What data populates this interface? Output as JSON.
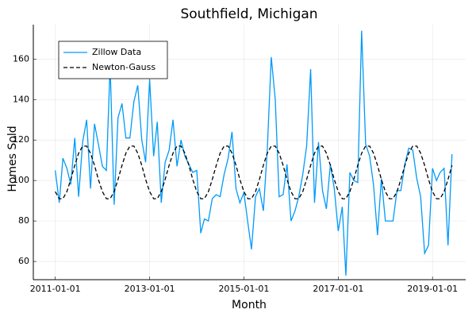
{
  "chart_data": {
    "type": "line",
    "title": "Southfield, Michigan",
    "x_label": "Month",
    "y_label": "Homes Sold",
    "x": [
      "2011-01-01",
      "2011-02-01",
      "2011-03-01",
      "2011-04-01",
      "2011-05-01",
      "2011-06-01",
      "2011-07-01",
      "2011-08-01",
      "2011-09-01",
      "2011-10-01",
      "2011-11-01",
      "2011-12-01",
      "2012-01-01",
      "2012-02-01",
      "2012-03-01",
      "2012-04-01",
      "2012-05-01",
      "2012-06-01",
      "2012-07-01",
      "2012-08-01",
      "2012-09-01",
      "2012-10-01",
      "2012-11-01",
      "2012-12-01",
      "2013-01-01",
      "2013-02-01",
      "2013-03-01",
      "2013-04-01",
      "2013-05-01",
      "2013-06-01",
      "2013-07-01",
      "2013-08-01",
      "2013-09-01",
      "2013-10-01",
      "2013-11-01",
      "2013-12-01",
      "2014-01-01",
      "2014-02-01",
      "2014-03-01",
      "2014-04-01",
      "2014-05-01",
      "2014-06-01",
      "2014-07-01",
      "2014-08-01",
      "2014-09-01",
      "2014-10-01",
      "2014-11-01",
      "2014-12-01",
      "2015-01-01",
      "2015-02-01",
      "2015-03-01",
      "2015-04-01",
      "2015-05-01",
      "2015-06-01",
      "2015-07-01",
      "2015-08-01",
      "2015-09-01",
      "2015-10-01",
      "2015-11-01",
      "2015-12-01",
      "2016-01-01",
      "2016-02-01",
      "2016-03-01",
      "2016-04-01",
      "2016-05-01",
      "2016-06-01",
      "2016-07-01",
      "2016-08-01",
      "2016-09-01",
      "2016-10-01",
      "2016-11-01",
      "2016-12-01",
      "2017-01-01",
      "2017-02-01",
      "2017-03-01",
      "2017-04-01",
      "2017-05-01",
      "2017-06-01",
      "2017-07-01",
      "2017-08-01",
      "2017-09-01",
      "2017-10-01",
      "2017-11-01",
      "2017-12-01",
      "2018-01-01",
      "2018-02-01",
      "2018-03-01",
      "2018-04-01",
      "2018-05-01",
      "2018-06-01",
      "2018-07-01",
      "2018-08-01",
      "2018-09-01",
      "2018-10-01",
      "2018-11-01",
      "2018-12-01",
      "2019-01-01",
      "2019-02-01",
      "2019-03-01",
      "2019-04-01",
      "2019-05-01",
      "2019-06-01"
    ],
    "series": [
      {
        "name": "Zillow Data",
        "color": "#009af9",
        "linestyle": "solid",
        "values": [
          105,
          89,
          111,
          106,
          98,
          121,
          92,
          119,
          130,
          96,
          128,
          118,
          107,
          105,
          157,
          88,
          131,
          138,
          121,
          121,
          139,
          147,
          120,
          109,
          150,
          112,
          129,
          89,
          109,
          115,
          130,
          107,
          120,
          112,
          108,
          104,
          105,
          74,
          81,
          80,
          91,
          93,
          92,
          103,
          111,
          124,
          96,
          89,
          94,
          79,
          66,
          92,
          96,
          85,
          115,
          161,
          140,
          92,
          93,
          108,
          80,
          85,
          92,
          103,
          117,
          155,
          89,
          119,
          95,
          86,
          108,
          96,
          75,
          87,
          53,
          104,
          100,
          99,
          174,
          118,
          112,
          98,
          73,
          101,
          80,
          80,
          80,
          95,
          95,
          108,
          116,
          115,
          101,
          92,
          64,
          68,
          106,
          100,
          104,
          106,
          68,
          113
        ]
      },
      {
        "name": "Newton-Gauss",
        "color": "#000000",
        "linestyle": "dash",
        "values": [
          94.5,
          91,
          91,
          94.5,
          100.5,
          107.5,
          113.5,
          117,
          117,
          113.5,
          107.5,
          100.5,
          94.5,
          91,
          91,
          94.5,
          100.5,
          107.5,
          113.5,
          117,
          117,
          113.5,
          107.5,
          100.5,
          94.5,
          91,
          91,
          94.5,
          100.5,
          107.5,
          113.5,
          117,
          117,
          113.5,
          107.5,
          100.5,
          94.5,
          91,
          91,
          94.5,
          100.5,
          107.5,
          113.5,
          117,
          117,
          113.5,
          107.5,
          100.5,
          94.5,
          91,
          91,
          94.5,
          100.5,
          107.5,
          113.5,
          117,
          117,
          113.5,
          107.5,
          100.5,
          94.5,
          91,
          91,
          94.5,
          100.5,
          107.5,
          113.5,
          117,
          117,
          113.5,
          107.5,
          100.5,
          94.5,
          91,
          91,
          94.5,
          100.5,
          107.5,
          113.5,
          117,
          117,
          113.5,
          107.5,
          100.5,
          94.5,
          91,
          91,
          94.5,
          100.5,
          107.5,
          113.5,
          117,
          117,
          113.5,
          107.5,
          100.5,
          94.5,
          91,
          91,
          94.5,
          100.5,
          107.5
        ]
      }
    ],
    "xlim": [
      "2010-07-15",
      "2019-09-15"
    ],
    "xticks": [
      "2011-01-01",
      "2013-01-01",
      "2015-01-01",
      "2017-01-01",
      "2019-01-01"
    ],
    "ylim": [
      51,
      177
    ],
    "yticks": [
      60,
      80,
      100,
      120,
      140,
      160
    ],
    "grid": true,
    "legend": "top-left"
  }
}
